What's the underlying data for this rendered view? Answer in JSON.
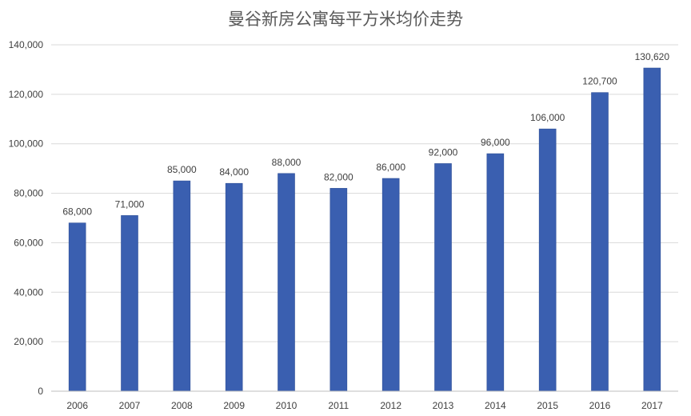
{
  "chart_data": {
    "type": "bar",
    "title": "曼谷新房公寓每平方米均价走势",
    "xlabel": "",
    "ylabel": "",
    "categories": [
      "2006",
      "2007",
      "2008",
      "2009",
      "2010",
      "2011",
      "2012",
      "2013",
      "2014",
      "2015",
      "2016",
      "2017"
    ],
    "values": [
      68000,
      71000,
      85000,
      84000,
      88000,
      82000,
      86000,
      92000,
      96000,
      106000,
      120700,
      130620
    ],
    "value_labels": [
      "68,000",
      "71,000",
      "85,000",
      "84,000",
      "88,000",
      "82,000",
      "86,000",
      "92,000",
      "96,000",
      "106,000",
      "120,700",
      "130,620"
    ],
    "ylim": [
      0,
      140000
    ],
    "yticks": [
      0,
      20000,
      40000,
      60000,
      80000,
      100000,
      120000,
      140000
    ],
    "ytick_labels": [
      "0",
      "20,000",
      "40,000",
      "60,000",
      "80,000",
      "100,000",
      "120,000",
      "140,000"
    ],
    "grid": true,
    "legend": "none",
    "colors": {
      "bar": "#3a5fb0",
      "bar_edge": "#2e4f97",
      "grid": "#d9d9d9",
      "axis": "#bfbfbf",
      "text": "#404040",
      "title": "#595959"
    }
  }
}
